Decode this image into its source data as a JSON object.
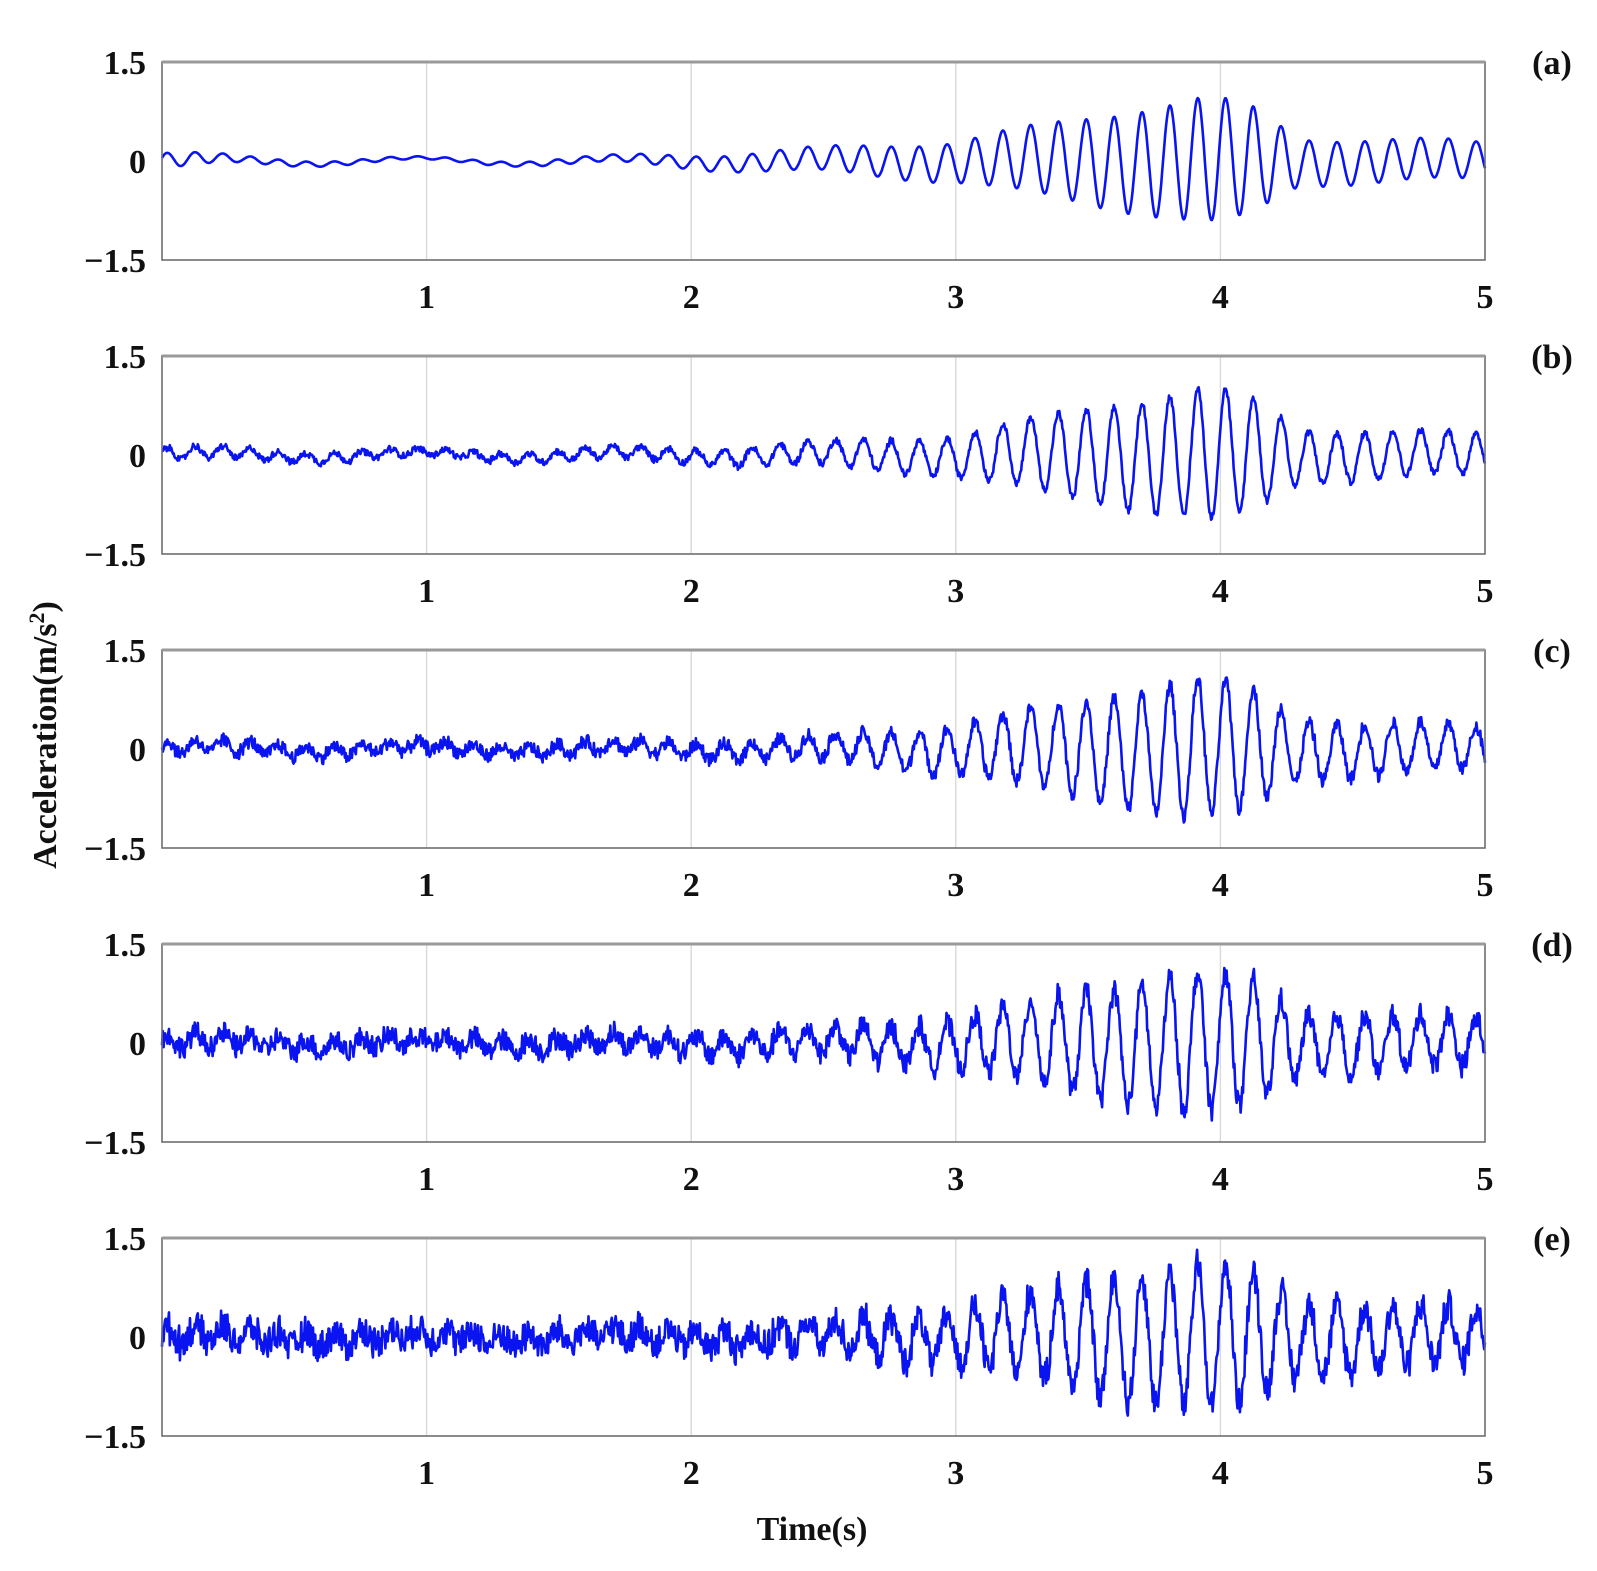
{
  "chart_data": {
    "type": "line",
    "ylabel_main": "Acceleration(m/s",
    "ylabel_sup": "2",
    "ylabel_tail": ")",
    "xlabel": "Time(s)",
    "series_color": "#0a14f0",
    "xlim": [
      0,
      5
    ],
    "ylim": [
      -1.5,
      1.5
    ],
    "xticks": [
      "1",
      "2",
      "3",
      "4",
      "5"
    ],
    "yticks": [
      "1.5",
      "0",
      "−1.5"
    ],
    "panels": [
      {
        "label": "(a)",
        "frequency_hz": 9.5,
        "noise_level": 0.0,
        "envelope": [
          [
            0,
            0.12
          ],
          [
            0.3,
            0.05
          ],
          [
            1,
            0.02
          ],
          [
            1.7,
            0.05
          ],
          [
            2,
            0.1
          ],
          [
            2.5,
            0.18
          ],
          [
            3,
            0.3
          ],
          [
            3.5,
            0.65
          ],
          [
            3.95,
            0.95
          ],
          [
            4.1,
            0.85
          ],
          [
            4.3,
            0.35
          ],
          [
            5,
            0.28
          ]
        ]
      },
      {
        "label": "(b)",
        "frequency_hz": 9.5,
        "noise_level": 0.06,
        "envelope": [
          [
            0,
            0.1
          ],
          [
            1,
            0.05
          ],
          [
            2,
            0.1
          ],
          [
            2.5,
            0.18
          ],
          [
            3,
            0.3
          ],
          [
            3.5,
            0.7
          ],
          [
            3.95,
            1.0
          ],
          [
            4.1,
            0.9
          ],
          [
            4.3,
            0.4
          ],
          [
            5,
            0.3
          ]
        ]
      },
      {
        "label": "(c)",
        "frequency_hz": 9.5,
        "noise_level": 0.12,
        "envelope": [
          [
            0,
            0.1
          ],
          [
            1,
            0.07
          ],
          [
            2,
            0.1
          ],
          [
            2.5,
            0.18
          ],
          [
            3,
            0.35
          ],
          [
            3.5,
            0.75
          ],
          [
            3.9,
            1.05
          ],
          [
            4.1,
            0.95
          ],
          [
            4.3,
            0.45
          ],
          [
            5,
            0.32
          ]
        ]
      },
      {
        "label": "(d)",
        "frequency_hz": 9.5,
        "noise_level": 0.2,
        "envelope": [
          [
            0,
            0.1
          ],
          [
            1,
            0.08
          ],
          [
            2,
            0.12
          ],
          [
            2.5,
            0.2
          ],
          [
            3,
            0.35
          ],
          [
            3.5,
            0.8
          ],
          [
            3.9,
            1.05
          ],
          [
            4.1,
            1.0
          ],
          [
            4.3,
            0.5
          ],
          [
            5,
            0.35
          ]
        ]
      },
      {
        "label": "(e)",
        "frequency_hz": 9.5,
        "noise_level": 0.28,
        "envelope": [
          [
            0,
            0.12
          ],
          [
            1,
            0.1
          ],
          [
            2,
            0.12
          ],
          [
            2.5,
            0.2
          ],
          [
            3,
            0.4
          ],
          [
            3.5,
            0.85
          ],
          [
            3.95,
            1.1
          ],
          [
            4.1,
            1.0
          ],
          [
            4.3,
            0.55
          ],
          [
            5,
            0.4
          ]
        ]
      }
    ]
  }
}
